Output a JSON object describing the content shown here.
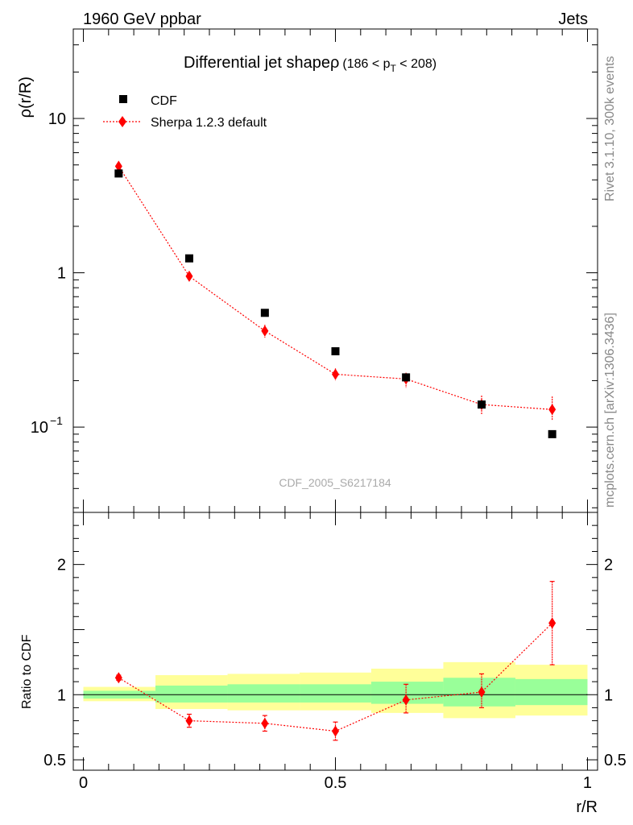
{
  "header": {
    "left": "1960 GeV ppbar",
    "right": "Jets"
  },
  "side_labels": {
    "rivet": "Rivet 3.1.10,  300k events",
    "mcplots": "mcplots.cern.ch [arXiv:1306.3436]"
  },
  "colors": {
    "data": "#000000",
    "mc": "#ff0000",
    "band_outer": "#ffff99",
    "band_inner": "#99ff99"
  },
  "chart_data": [
    {
      "type": "scatter",
      "title_main": "Differential jet shape",
      "title_rho": "ρ",
      "title_range_pre": "(186 < p",
      "title_range_sub": "T",
      "title_range_post": " < 208)",
      "ylabel": "ρ(r/R)",
      "yscale": "log",
      "ylim": [
        0.028,
        38
      ],
      "xlim": [
        -0.02,
        1.02
      ],
      "yticks": [
        {
          "value": 10,
          "label": "10"
        },
        {
          "value": 1,
          "label": "1"
        },
        {
          "value": 0.1,
          "label_base": "10",
          "label_exp": "−1"
        }
      ],
      "watermark": "CDF_2005_S6217184",
      "legend": {
        "position": "top-left",
        "data_label": "CDF",
        "mc_label": "Sherpa 1.2.3 default"
      },
      "series": [
        {
          "name": "CDF",
          "marker": "square",
          "x": [
            0.07,
            0.21,
            0.36,
            0.5,
            0.64,
            0.79,
            0.93
          ],
          "y": [
            4.4,
            1.24,
            0.55,
            0.31,
            0.21,
            0.14,
            0.09
          ]
        },
        {
          "name": "Sherpa 1.2.3 default",
          "marker": "diamond",
          "x": [
            0.07,
            0.21,
            0.36,
            0.5,
            0.64,
            0.79,
            0.93
          ],
          "y": [
            4.9,
            0.95,
            0.42,
            0.22,
            0.205,
            0.14,
            0.13
          ],
          "yerr_low": [
            0.1,
            0.06,
            0.04,
            0.02,
            0.025,
            0.02,
            0.02
          ],
          "yerr_high": [
            0.1,
            0.06,
            0.04,
            0.02,
            0.02,
            0.02,
            0.028
          ]
        }
      ]
    },
    {
      "type": "scatter",
      "ylabel": "Ratio to CDF",
      "xlabel": "r/R",
      "ylim": [
        0.42,
        2.4
      ],
      "xlim": [
        -0.02,
        1.02
      ],
      "yticks": [
        {
          "value": 2,
          "label": "2"
        },
        {
          "value": 1,
          "label": "1"
        },
        {
          "value": 0.5,
          "label": "0.5"
        }
      ],
      "xticks": [
        {
          "value": 0,
          "label": "0"
        },
        {
          "value": 0.5,
          "label": "0.5"
        },
        {
          "value": 1,
          "label": "1"
        }
      ],
      "reference_line": 1,
      "bands": [
        {
          "x0": 0.0,
          "x1": 0.143,
          "outer": [
            0.95,
            1.06
          ],
          "inner": [
            0.97,
            1.03
          ]
        },
        {
          "x0": 0.143,
          "x1": 0.286,
          "outer": [
            0.89,
            1.15
          ],
          "inner": [
            0.94,
            1.07
          ]
        },
        {
          "x0": 0.286,
          "x1": 0.429,
          "outer": [
            0.88,
            1.16
          ],
          "inner": [
            0.94,
            1.08
          ]
        },
        {
          "x0": 0.429,
          "x1": 0.571,
          "outer": [
            0.88,
            1.17
          ],
          "inner": [
            0.94,
            1.08
          ]
        },
        {
          "x0": 0.571,
          "x1": 0.714,
          "outer": [
            0.86,
            1.2
          ],
          "inner": [
            0.93,
            1.1
          ]
        },
        {
          "x0": 0.714,
          "x1": 0.857,
          "outer": [
            0.82,
            1.25
          ],
          "inner": [
            0.91,
            1.13
          ]
        },
        {
          "x0": 0.857,
          "x1": 1.0,
          "outer": [
            0.84,
            1.23
          ],
          "inner": [
            0.92,
            1.12
          ]
        }
      ],
      "series": [
        {
          "name": "Sherpa 1.2.3 default",
          "marker": "diamond",
          "x": [
            0.07,
            0.21,
            0.36,
            0.5,
            0.64,
            0.79,
            0.93
          ],
          "y": [
            1.13,
            0.8,
            0.78,
            0.72,
            0.96,
            1.02,
            1.55
          ],
          "yerr_low": [
            0.02,
            0.05,
            0.06,
            0.07,
            0.1,
            0.12,
            0.32
          ],
          "yerr_high": [
            0.02,
            0.05,
            0.06,
            0.07,
            0.12,
            0.14,
            0.32
          ]
        }
      ]
    }
  ]
}
